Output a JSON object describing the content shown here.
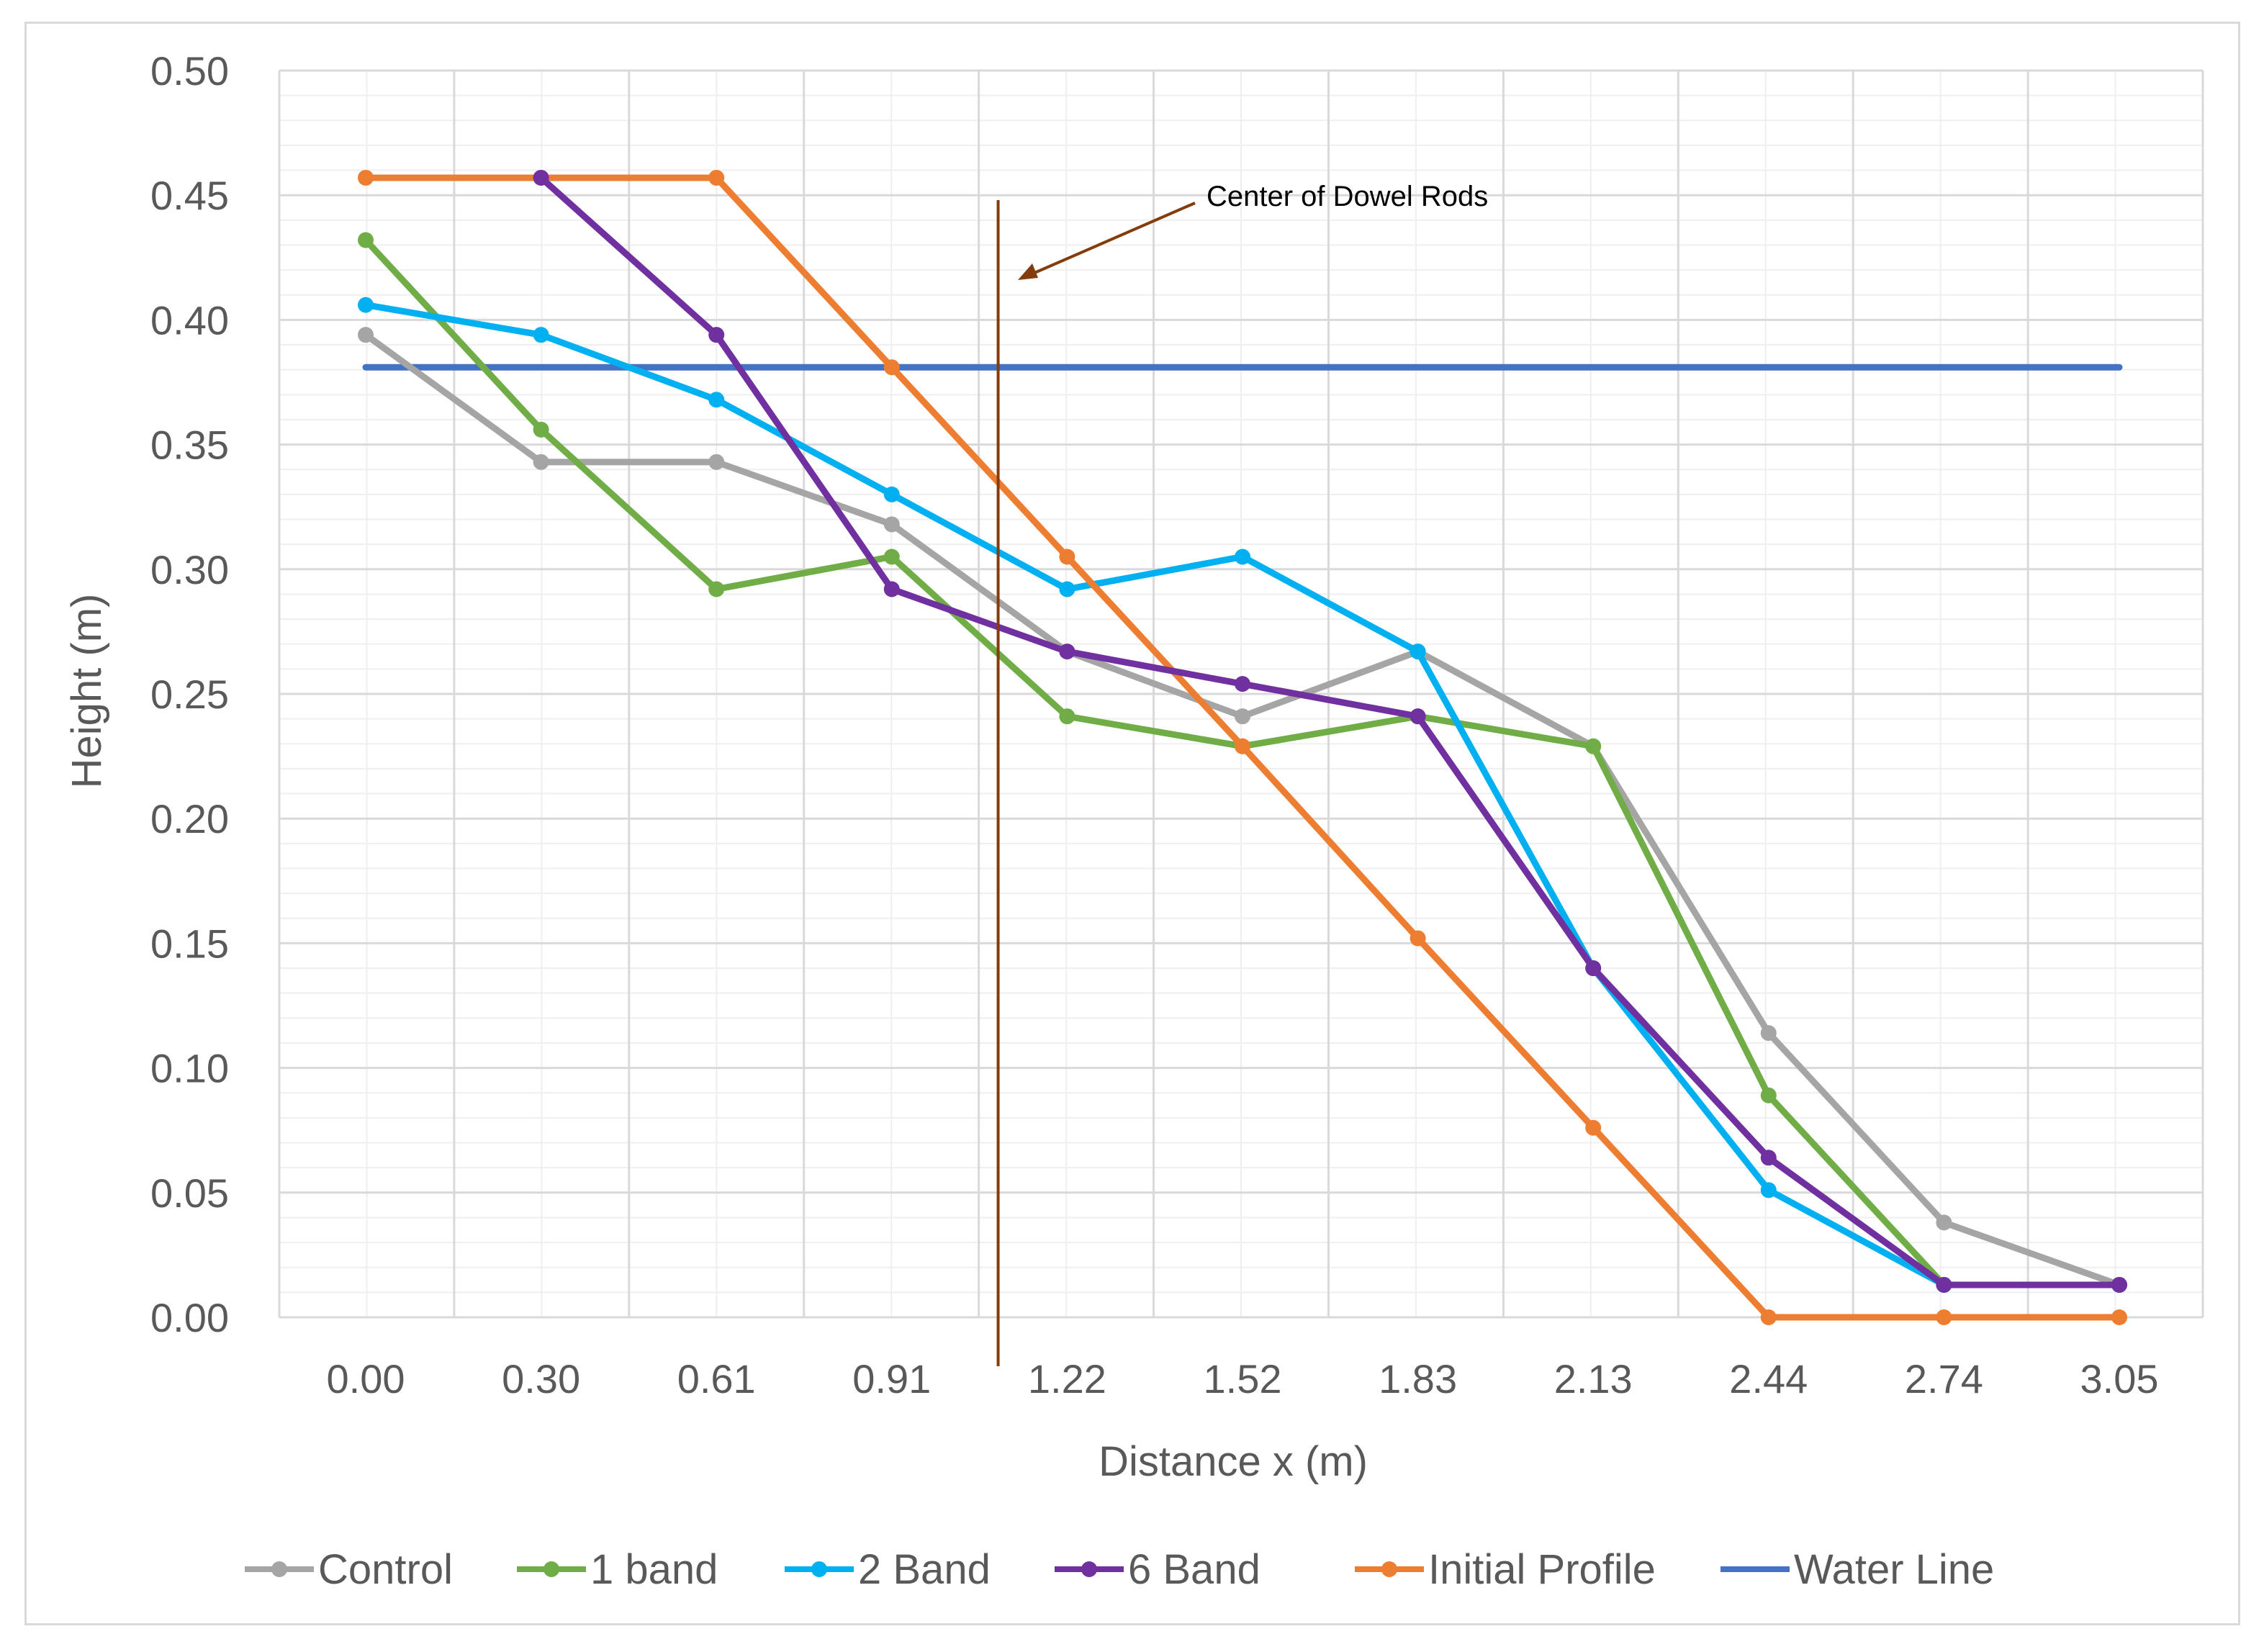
{
  "chart_data": {
    "type": "line",
    "title": "",
    "xlabel": "Distance x (m)",
    "ylabel": "Height (m)",
    "categories": [
      "0.00",
      "0.30",
      "0.61",
      "0.91",
      "1.22",
      "1.52",
      "1.83",
      "2.13",
      "2.44",
      "2.74",
      "3.05"
    ],
    "ylim": [
      0,
      0.5
    ],
    "yticks": [
      "0.00",
      "0.05",
      "0.10",
      "0.15",
      "0.20",
      "0.25",
      "0.30",
      "0.35",
      "0.40",
      "0.45",
      "0.50"
    ],
    "grid": true,
    "legend_position": "bottom",
    "series": [
      {
        "name": "Control",
        "color": "#a5a5a5",
        "markers": true,
        "values": [
          0.394,
          0.343,
          0.343,
          0.318,
          0.267,
          0.241,
          0.267,
          0.229,
          0.114,
          0.038,
          0.013
        ]
      },
      {
        "name": "1 band",
        "color": "#70ad47",
        "markers": true,
        "values": [
          0.432,
          0.356,
          0.292,
          0.305,
          0.241,
          0.229,
          0.241,
          0.229,
          0.089,
          0.013,
          0.013
        ]
      },
      {
        "name": "2 Band",
        "color": "#00b0f0",
        "markers": true,
        "values": [
          0.406,
          0.394,
          0.368,
          0.33,
          0.292,
          0.305,
          0.267,
          0.14,
          0.051,
          0.013,
          0.013
        ]
      },
      {
        "name": "6 Band",
        "color": "#7030a0",
        "markers": true,
        "values": [
          null,
          0.457,
          0.394,
          0.292,
          0.267,
          0.254,
          0.241,
          0.14,
          0.064,
          0.013,
          0.013
        ]
      },
      {
        "name": "Initial Profile",
        "color": "#ed7d31",
        "markers": true,
        "values": [
          0.457,
          0.457,
          0.457,
          0.381,
          0.305,
          0.229,
          0.152,
          0.076,
          0.0,
          0.0,
          0.0
        ]
      },
      {
        "name": "Water Line",
        "color": "#4472c4",
        "markers": false,
        "values": [
          0.381,
          0.381,
          0.381,
          0.381,
          0.381,
          0.381,
          0.381,
          0.381,
          0.381,
          0.381,
          0.381
        ]
      }
    ],
    "annotations": [
      {
        "text": "Center of Dowel Rods",
        "x": 1.1,
        "type": "vertical-line",
        "color": "#843c0c"
      }
    ]
  }
}
